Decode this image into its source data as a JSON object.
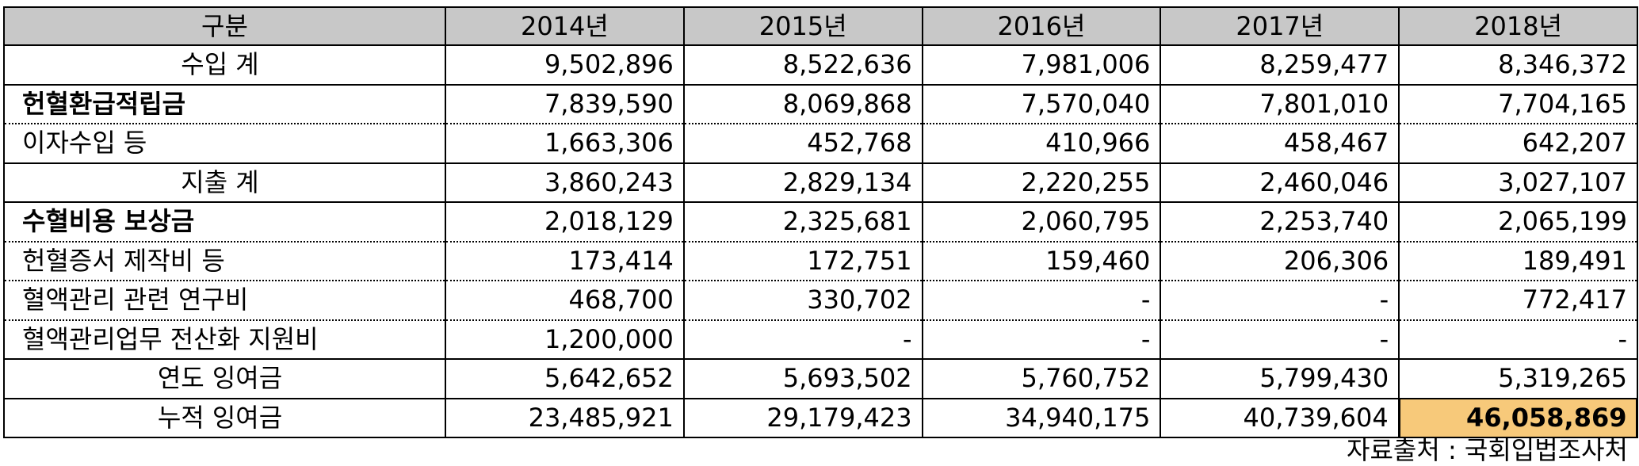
{
  "table": {
    "headers": [
      "구분",
      "2014년",
      "2015년",
      "2016년",
      "2017년",
      "2018년"
    ],
    "rows": [
      {
        "label": "수입 계",
        "values": [
          "9,502,896",
          "8,522,636",
          "7,981,006",
          "8,259,477",
          "8,346,372"
        ]
      },
      {
        "label": "헌혈환급적립금",
        "values": [
          "7,839,590",
          "8,069,868",
          "7,570,040",
          "7,801,010",
          "7,704,165"
        ]
      },
      {
        "label": "이자수입 등",
        "values": [
          "1,663,306",
          "452,768",
          "410,966",
          "458,467",
          "642,207"
        ]
      },
      {
        "label": "지출 계",
        "values": [
          "3,860,243",
          "2,829,134",
          "2,220,255",
          "2,460,046",
          "3,027,107"
        ]
      },
      {
        "label": "수혈비용 보상금",
        "values": [
          "2,018,129",
          "2,325,681",
          "2,060,795",
          "2,253,740",
          "2,065,199"
        ]
      },
      {
        "label": "헌혈증서 제작비 등",
        "values": [
          "173,414",
          "172,751",
          "159,460",
          "206,306",
          "189,491"
        ]
      },
      {
        "label": "혈액관리 관련 연구비",
        "values": [
          "468,700",
          "330,702",
          "-",
          "-",
          "772,417"
        ]
      },
      {
        "label": "혈액관리업무 전산화 지원비",
        "values": [
          "1,200,000",
          "-",
          "-",
          "-",
          "-"
        ]
      },
      {
        "label": "연도 잉여금",
        "values": [
          "5,642,652",
          "5,693,502",
          "5,760,752",
          "5,799,430",
          "5,319,265"
        ]
      },
      {
        "label": "누적 잉여금",
        "values": [
          "23,485,921",
          "29,179,423",
          "34,940,175",
          "40,739,604",
          "46,058,869"
        ]
      }
    ]
  },
  "source_note": "자료출처 : 국회입법조사처",
  "colors": {
    "header_bg": "#c8c8c8",
    "highlight_bg": "#f7c97a"
  }
}
